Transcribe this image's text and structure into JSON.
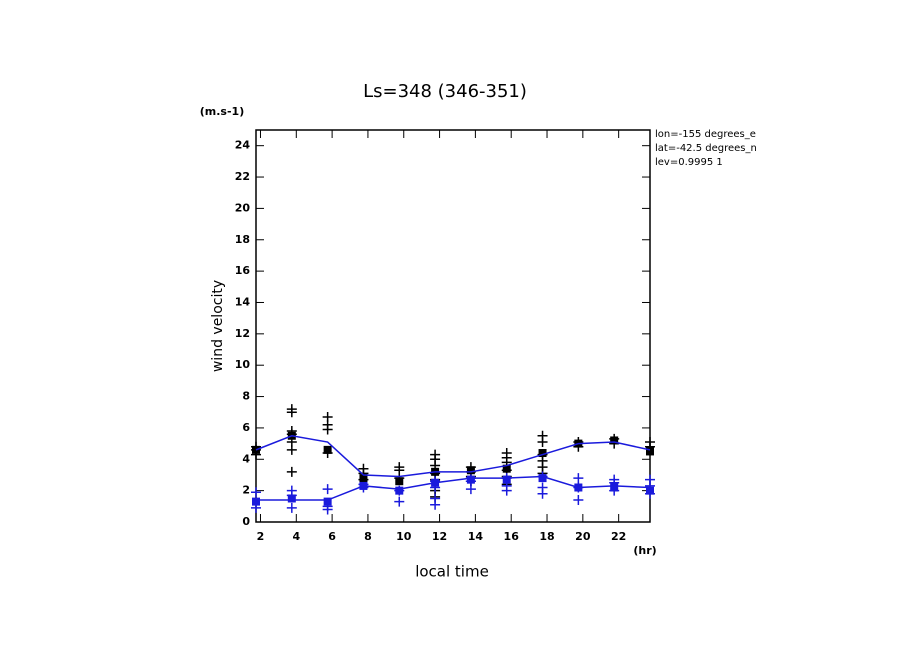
{
  "chart_data": {
    "type": "line",
    "title": "Ls=348 (346-351)",
    "y_unit": "(m.s-1)",
    "y_label": "wind velocity",
    "x_label": "local time",
    "x_unit": "(hr)",
    "annotations": [
      "lon=-155 degrees_e",
      "lat=-42.5 degrees_n",
      "lev=0.9995 1"
    ],
    "xlim": [
      1.75,
      23.75
    ],
    "xticks": [
      2,
      4,
      6,
      8,
      10,
      12,
      14,
      16,
      18,
      20,
      22
    ],
    "ylim": [
      0,
      25
    ],
    "yticks": [
      0,
      2,
      4,
      6,
      8,
      10,
      12,
      14,
      16,
      18,
      20,
      22,
      24
    ],
    "series": [
      {
        "marker": "plus",
        "color": "#000000",
        "x": [
          1.75,
          1.75,
          1.75,
          3.75,
          3.75,
          3.75,
          3.75,
          3.75,
          3.75,
          3.75,
          5.75,
          5.75,
          5.75,
          5.75,
          7.75,
          7.75,
          7.75,
          9.75,
          9.75,
          9.75,
          11.75,
          11.75,
          11.75,
          11.75,
          11.75,
          11.75,
          11.75,
          13.75,
          13.75,
          13.75,
          13.75,
          15.75,
          15.75,
          15.75,
          15.75,
          15.75,
          15.75,
          17.75,
          17.75,
          17.75,
          17.75,
          17.75,
          17.75,
          19.75,
          19.75,
          21.75,
          21.75,
          23.75,
          23.75
        ],
        "values": [
          4.3,
          4.6,
          4.8,
          3.2,
          4.6,
          5.1,
          5.6,
          5.8,
          7.0,
          7.2,
          4.4,
          5.9,
          6.2,
          6.7,
          2.7,
          3.1,
          3.4,
          2.8,
          3.3,
          3.5,
          1.6,
          2.0,
          2.7,
          3.1,
          3.6,
          4.0,
          4.3,
          2.6,
          2.9,
          3.2,
          3.5,
          2.4,
          2.9,
          3.3,
          3.8,
          4.1,
          4.4,
          3.1,
          3.5,
          3.9,
          4.3,
          5.1,
          5.5,
          4.8,
          5.1,
          5.0,
          5.3,
          4.8,
          5.1
        ]
      },
      {
        "marker": "plus",
        "color": "#1a1adc",
        "x": [
          1.75,
          1.75,
          3.75,
          3.75,
          3.75,
          5.75,
          5.75,
          5.75,
          7.75,
          7.75,
          9.75,
          9.75,
          11.75,
          11.75,
          11.75,
          11.75,
          13.75,
          13.75,
          13.75,
          15.75,
          15.75,
          15.75,
          17.75,
          17.75,
          17.75,
          19.75,
          19.75,
          19.75,
          21.75,
          21.75,
          21.75,
          23.75,
          23.75,
          23.75
        ],
        "values": [
          0.9,
          1.9,
          0.9,
          1.7,
          2.0,
          0.8,
          1.0,
          2.1,
          2.2,
          2.4,
          1.3,
          2.0,
          1.1,
          1.5,
          2.2,
          2.6,
          2.1,
          2.6,
          2.8,
          2.0,
          2.3,
          2.8,
          1.8,
          2.2,
          2.9,
          1.4,
          2.2,
          2.8,
          2.0,
          2.5,
          2.7,
          1.8,
          2.3,
          2.7
        ]
      },
      {
        "marker": "square",
        "color": "#000000",
        "x": [
          1.75,
          3.75,
          5.75,
          7.75,
          9.75,
          11.75,
          13.75,
          15.75,
          17.75,
          19.75,
          21.75,
          23.75
        ],
        "values": [
          4.6,
          5.5,
          4.6,
          2.8,
          2.6,
          3.2,
          3.3,
          3.4,
          4.4,
          5.0,
          5.2,
          4.5
        ]
      },
      {
        "marker": "square",
        "color": "#1a1adc",
        "x": [
          1.75,
          3.75,
          5.75,
          7.75,
          9.75,
          11.75,
          13.75,
          15.75,
          17.75,
          19.75,
          21.75,
          23.75
        ],
        "values": [
          1.3,
          1.5,
          1.3,
          2.3,
          2.0,
          2.5,
          2.7,
          2.7,
          2.8,
          2.2,
          2.2,
          2.0
        ]
      },
      {
        "marker": "line",
        "color": "#1a1adc",
        "x": [
          1.75,
          3.75,
          5.75,
          7.75,
          9.75,
          11.75,
          13.75,
          15.75,
          17.75,
          19.75,
          21.75,
          23.75
        ],
        "values": [
          4.6,
          5.5,
          5.1,
          3.0,
          2.9,
          3.2,
          3.2,
          3.6,
          4.3,
          5.0,
          5.1,
          4.6
        ]
      },
      {
        "marker": "line",
        "color": "#1a1adc",
        "x": [
          1.75,
          3.75,
          5.75,
          7.75,
          9.75,
          11.75,
          13.75,
          15.75,
          17.75,
          19.75,
          21.75,
          23.75
        ],
        "values": [
          1.4,
          1.4,
          1.4,
          2.3,
          2.1,
          2.5,
          2.8,
          2.8,
          2.9,
          2.2,
          2.3,
          2.2
        ]
      }
    ]
  }
}
